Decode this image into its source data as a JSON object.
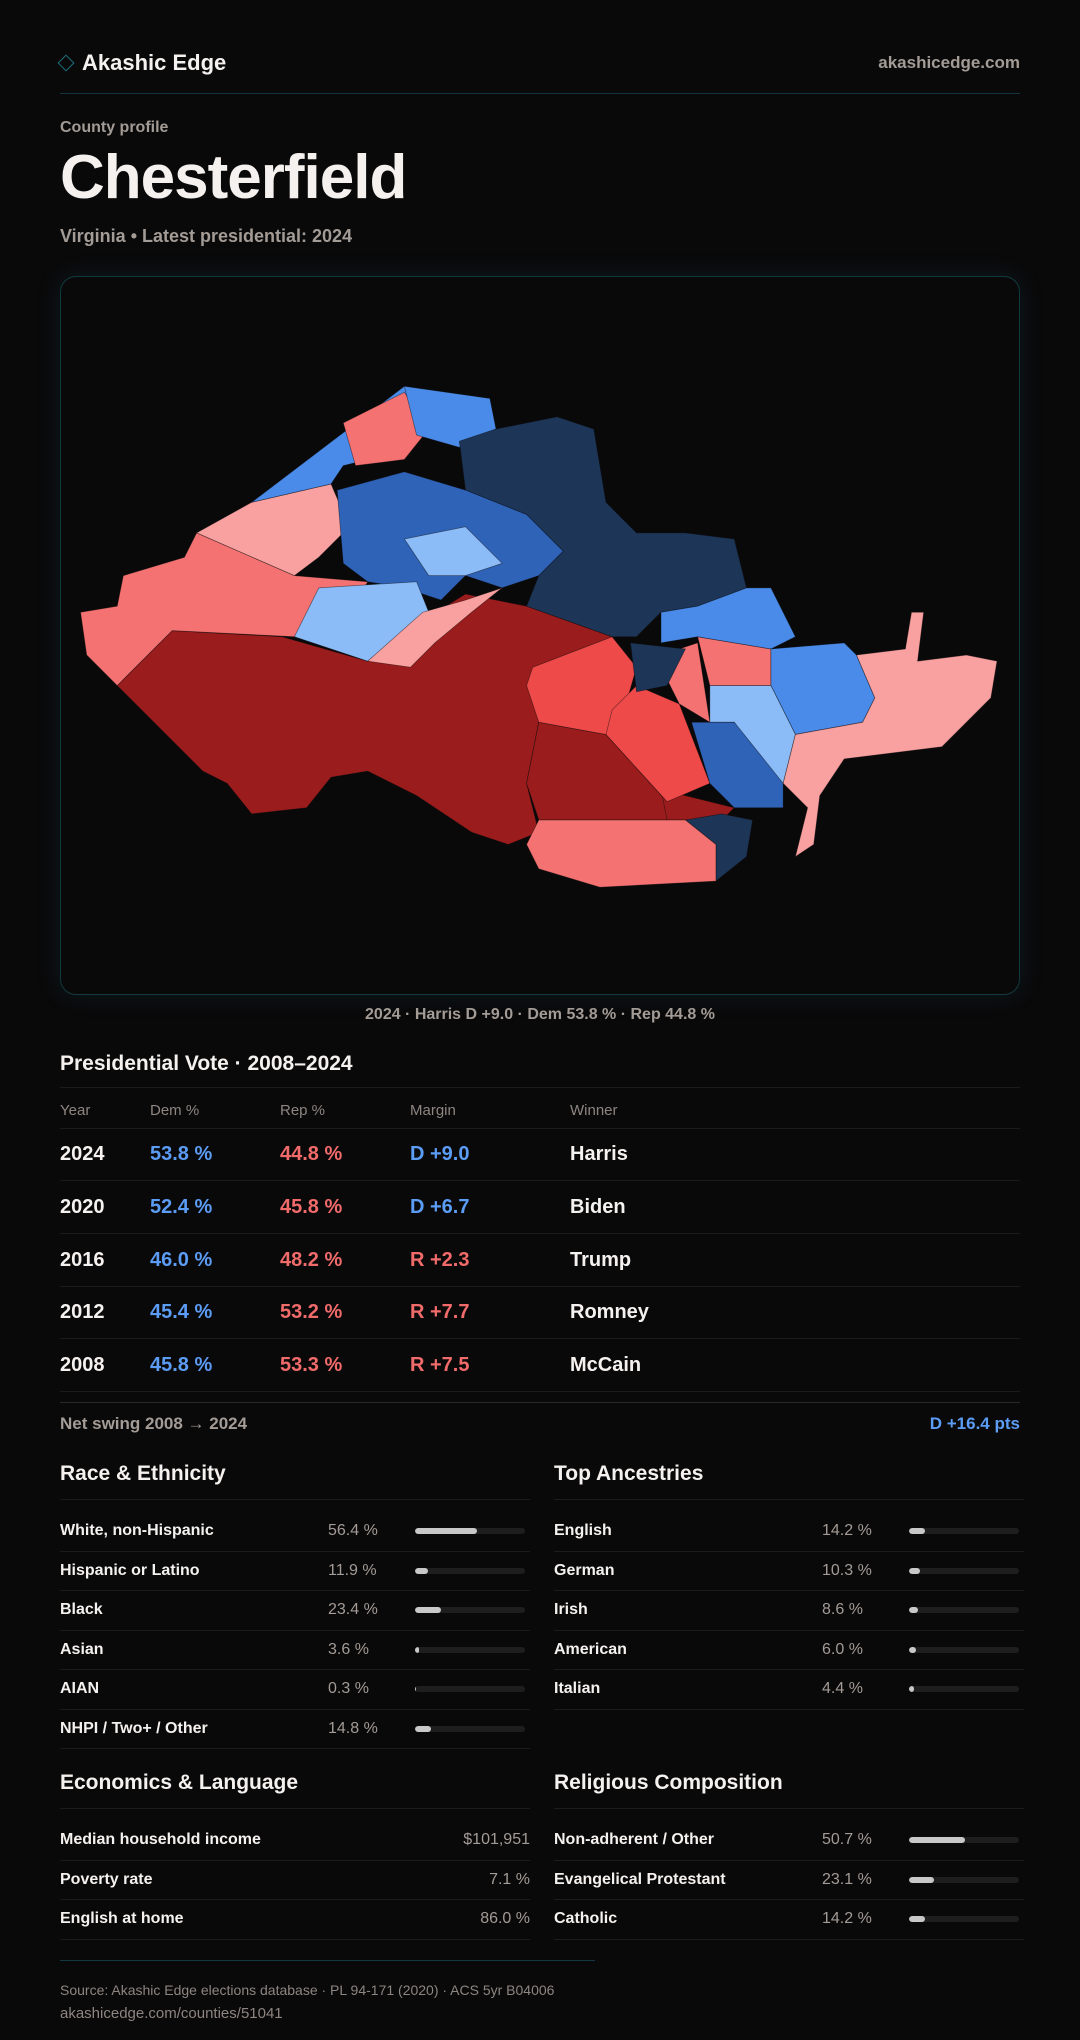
{
  "header": {
    "brand": "Akashic Edge",
    "site": "akashicedge.com",
    "logo_icon": "diamond-icon"
  },
  "page": {
    "eyebrow": "County profile",
    "title": "Chesterfield",
    "subtitle": "Virginia • Latest presidential: 2024"
  },
  "map": {
    "caption": "2024 · Harris D +9.0 · Dem 53.8 % · Rep 44.8 %",
    "colors": {
      "strong_rep": "#9b1c1c",
      "rep": "#ef4a4a",
      "lean_rep": "#f47272",
      "tilt_rep": "#f9a0a0",
      "strong_dem": "#1d3557",
      "dem": "#2f63b8",
      "lean_dem": "#4a8ae8",
      "tilt_dem": "#8cbcf8"
    }
  },
  "presidential": {
    "title": "Presidential Vote · 2008–2024",
    "columns": [
      "Year",
      "Dem %",
      "Rep %",
      "Margin",
      "Winner"
    ],
    "rows": [
      {
        "year": "2024",
        "dem": "53.8 %",
        "rep": "44.8 %",
        "margin": "D +9.0",
        "winner": "Harris",
        "party": "D"
      },
      {
        "year": "2020",
        "dem": "52.4 %",
        "rep": "45.8 %",
        "margin": "D +6.7",
        "winner": "Biden",
        "party": "D"
      },
      {
        "year": "2016",
        "dem": "46.0 %",
        "rep": "48.2 %",
        "margin": "R +2.3",
        "winner": "Trump",
        "party": "R"
      },
      {
        "year": "2012",
        "dem": "45.4 %",
        "rep": "53.2 %",
        "margin": "R +7.7",
        "winner": "Romney",
        "party": "R"
      },
      {
        "year": "2008",
        "dem": "45.8 %",
        "rep": "53.3 %",
        "margin": "R +7.5",
        "winner": "McCain",
        "party": "R"
      }
    ],
    "swing_label": "Net swing 2008 → 2024",
    "swing_value": "D +16.4 pts"
  },
  "race": {
    "title": "Race & Ethnicity",
    "rows": [
      {
        "label": "White, non-Hispanic",
        "value": "56.4 %",
        "pct": 56.4
      },
      {
        "label": "Hispanic or Latino",
        "value": "11.9 %",
        "pct": 11.9
      },
      {
        "label": "Black",
        "value": "23.4 %",
        "pct": 23.4
      },
      {
        "label": "Asian",
        "value": "3.6 %",
        "pct": 3.6
      },
      {
        "label": "AIAN",
        "value": "0.3 %",
        "pct": 0.3
      },
      {
        "label": "NHPI / Two+ / Other",
        "value": "14.8 %",
        "pct": 14.8
      }
    ]
  },
  "ancestry": {
    "title": "Top Ancestries",
    "rows": [
      {
        "label": "English",
        "value": "14.2 %",
        "pct": 14.2
      },
      {
        "label": "German",
        "value": "10.3 %",
        "pct": 10.3
      },
      {
        "label": "Irish",
        "value": "8.6 %",
        "pct": 8.6
      },
      {
        "label": "American",
        "value": "6.0 %",
        "pct": 6.0
      },
      {
        "label": "Italian",
        "value": "4.4 %",
        "pct": 4.4
      }
    ]
  },
  "economics": {
    "title": "Economics & Language",
    "rows": [
      {
        "label": "Median household income",
        "value": "$101,951"
      },
      {
        "label": "Poverty rate",
        "value": "7.1 %"
      },
      {
        "label": "English at home",
        "value": "86.0 %"
      }
    ]
  },
  "religion": {
    "title": "Religious Composition",
    "rows": [
      {
        "label": "Non-adherent / Other",
        "value": "50.7 %",
        "pct": 50.7
      },
      {
        "label": "Evangelical Protestant",
        "value": "23.1 %",
        "pct": 23.1
      },
      {
        "label": "Catholic",
        "value": "14.2 %",
        "pct": 14.2
      }
    ]
  },
  "footer": {
    "source": "Source: Akashic Edge elections database · PL 94-171 (2020) · ACS 5yr B04006",
    "url": "akashicedge.com/counties/51041"
  }
}
